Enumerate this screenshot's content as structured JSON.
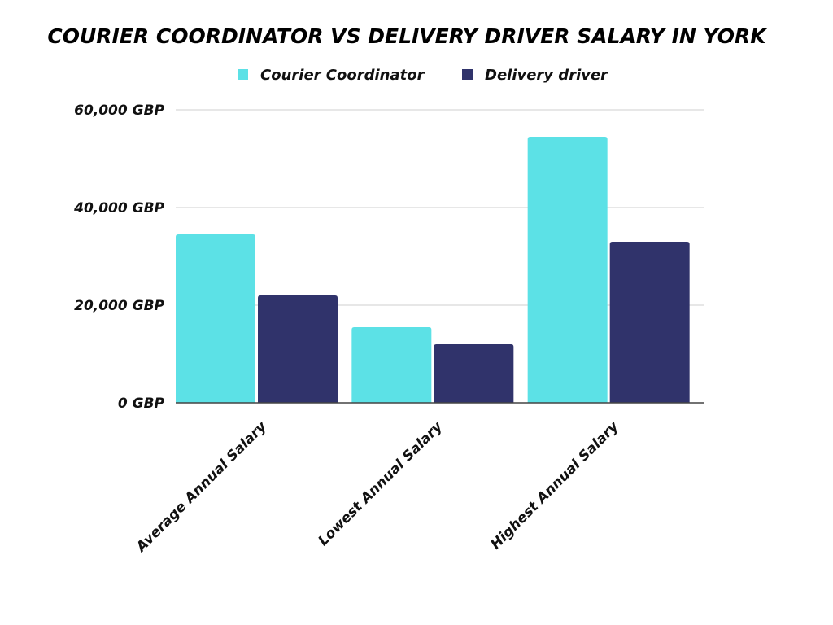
{
  "chart_data": {
    "type": "bar",
    "title": "COURIER COORDINATOR VS DELIVERY DRIVER SALARY IN YORK",
    "categories": [
      "Average Annual Salary",
      "Lowest Annual Salary",
      "Highest Annual Salary"
    ],
    "series": [
      {
        "name": "Courier Coordinator",
        "values": [
          34500,
          15500,
          54500
        ],
        "color": "#5ce1e6"
      },
      {
        "name": "Delivery driver",
        "values": [
          22000,
          12000,
          33000
        ],
        "color": "#30336b"
      }
    ],
    "y_ticks": [
      0,
      20000,
      40000,
      60000
    ],
    "y_tick_labels": [
      "0 GBP",
      "20,000 GBP",
      "40,000 GBP",
      "60,000 GBP"
    ],
    "ylim": [
      0,
      60000
    ],
    "grid": true,
    "legend_position": "top-center",
    "xlabel": "",
    "ylabel": ""
  }
}
